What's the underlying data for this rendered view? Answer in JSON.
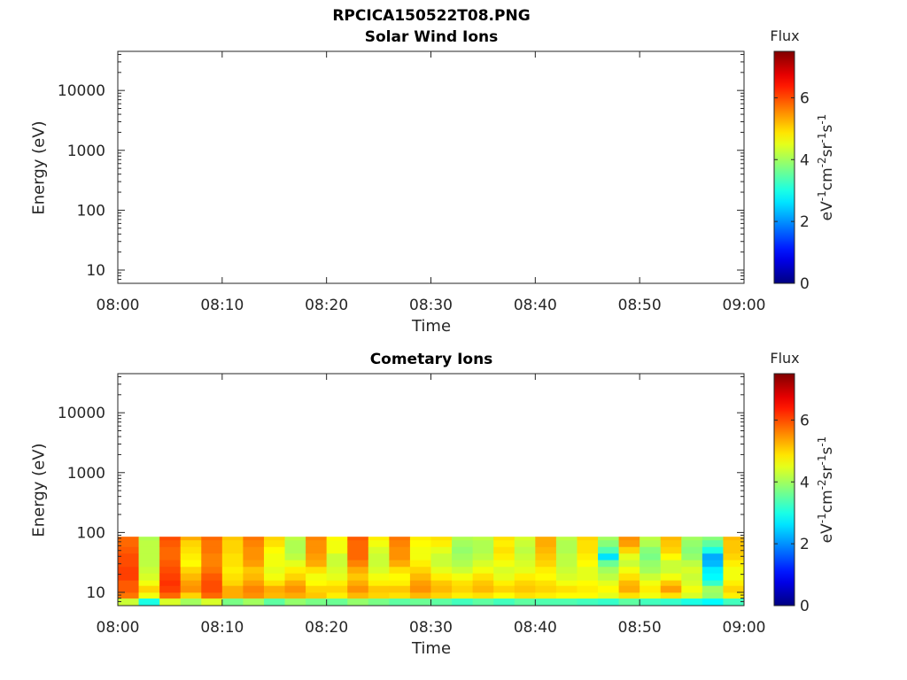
{
  "figure": {
    "title_line1": "RPCICA150522T08.PNG"
  },
  "colorbar": {
    "label": "Flux",
    "units": "eV-1cm-2sr-1s-1",
    "ticks": [
      "0",
      "2",
      "4",
      "6"
    ],
    "range": [
      0,
      7.5
    ],
    "colormap": "jet"
  },
  "chart_data": [
    {
      "type": "heatmap",
      "title": "Solar Wind Ions",
      "xlabel": "Time",
      "ylabel": "Energy (eV)",
      "x_ticks": [
        "08:00",
        "08:10",
        "08:20",
        "08:30",
        "08:40",
        "08:50",
        "09:00"
      ],
      "x_range": [
        "08:00",
        "09:00"
      ],
      "y_scale": "log",
      "y_ticks": [
        "10",
        "100",
        "1000",
        "10000"
      ],
      "y_range": [
        6,
        45000
      ],
      "z_range": [
        0,
        7.5
      ],
      "columns": [],
      "energy_bins": []
    },
    {
      "type": "heatmap",
      "title": "Cometary Ions",
      "xlabel": "Time",
      "ylabel": "Energy (eV)",
      "x_ticks": [
        "08:00",
        "08:10",
        "08:20",
        "08:30",
        "08:40",
        "08:50",
        "09:00"
      ],
      "x_range": [
        "08:00",
        "09:00"
      ],
      "y_scale": "log",
      "y_ticks": [
        "10",
        "100",
        "1000",
        "10000"
      ],
      "y_range": [
        6,
        45000
      ],
      "z_range": [
        0,
        7.5
      ],
      "energy_bins": [
        6,
        8,
        10,
        13,
        16,
        21,
        27,
        35,
        45,
        58,
        75,
        85
      ],
      "columns": [
        {
          "start": "08:00",
          "end": "08:02",
          "flux": [
            4.3,
            5.7,
            5.9,
            5.9,
            6.1,
            6.1,
            6.0,
            6.0,
            5.9,
            5.8,
            5.8
          ]
        },
        {
          "start": "08:02",
          "end": "08:04",
          "flux": [
            3.0,
            4.6,
            5.0,
            4.6,
            4.4,
            4.3,
            4.2,
            4.2,
            4.2,
            4.2,
            4.1
          ]
        },
        {
          "start": "08:04",
          "end": "08:06",
          "flux": [
            4.4,
            5.8,
            6.1,
            6.2,
            6.1,
            6.0,
            5.9,
            5.8,
            5.8,
            5.9,
            6.0
          ]
        },
        {
          "start": "08:06",
          "end": "08:08",
          "flux": [
            4.0,
            5.0,
            5.5,
            5.4,
            5.2,
            5.0,
            4.7,
            4.8,
            4.9,
            5.0,
            5.3
          ]
        },
        {
          "start": "08:08",
          "end": "08:10",
          "flux": [
            4.4,
            5.8,
            6.0,
            6.0,
            5.9,
            5.7,
            5.6,
            5.6,
            5.7,
            5.7,
            5.8
          ]
        },
        {
          "start": "08:10",
          "end": "08:12",
          "flux": [
            3.7,
            5.3,
            5.3,
            5.0,
            4.9,
            4.8,
            4.9,
            4.9,
            5.0,
            5.0,
            5.1
          ]
        },
        {
          "start": "08:12",
          "end": "08:14",
          "flux": [
            4.0,
            5.5,
            5.6,
            5.4,
            5.2,
            5.1,
            5.4,
            5.5,
            5.5,
            5.6,
            5.7
          ]
        },
        {
          "start": "08:14",
          "end": "08:16",
          "flux": [
            3.5,
            5.2,
            5.3,
            4.9,
            4.6,
            4.5,
            4.6,
            4.6,
            4.7,
            4.9,
            5.0
          ]
        },
        {
          "start": "08:16",
          "end": "08:18",
          "flux": [
            3.9,
            5.3,
            5.5,
            5.3,
            5.0,
            4.8,
            4.5,
            4.2,
            4.1,
            4.1,
            4.2
          ]
        },
        {
          "start": "08:18",
          "end": "08:20",
          "flux": [
            3.7,
            5.1,
            5.0,
            4.7,
            4.6,
            4.9,
            5.3,
            5.4,
            5.5,
            5.5,
            5.6
          ]
        },
        {
          "start": "08:20",
          "end": "08:22",
          "flux": [
            3.6,
            4.8,
            5.0,
            4.8,
            4.5,
            4.4,
            4.3,
            4.3,
            4.6,
            4.6,
            4.7
          ]
        },
        {
          "start": "08:22",
          "end": "08:24",
          "flux": [
            3.9,
            5.2,
            5.5,
            5.3,
            5.1,
            5.3,
            5.6,
            5.8,
            5.8,
            5.8,
            5.9
          ]
        },
        {
          "start": "08:24",
          "end": "08:26",
          "flux": [
            3.7,
            5.0,
            5.1,
            4.8,
            4.6,
            4.4,
            4.3,
            4.3,
            4.4,
            4.6,
            4.8
          ]
        },
        {
          "start": "08:26",
          "end": "08:28",
          "flux": [
            3.5,
            4.9,
            5.1,
            4.8,
            4.7,
            4.9,
            5.3,
            5.5,
            5.5,
            5.6,
            5.7
          ]
        },
        {
          "start": "08:28",
          "end": "08:30",
          "flux": [
            3.6,
            5.2,
            5.5,
            5.4,
            5.2,
            5.0,
            4.8,
            4.6,
            4.6,
            4.7,
            4.8
          ]
        },
        {
          "start": "08:30",
          "end": "08:32",
          "flux": [
            3.5,
            5.0,
            5.2,
            5.1,
            4.8,
            4.5,
            4.3,
            4.3,
            4.5,
            4.8,
            4.9
          ]
        },
        {
          "start": "08:32",
          "end": "08:34",
          "flux": [
            3.3,
            4.8,
            5.0,
            4.9,
            4.6,
            4.3,
            4.1,
            4.0,
            3.9,
            4.0,
            4.1
          ]
        },
        {
          "start": "08:34",
          "end": "08:36",
          "flux": [
            3.5,
            4.9,
            5.2,
            5.1,
            4.9,
            4.6,
            4.4,
            4.2,
            4.1,
            4.1,
            4.2
          ]
        },
        {
          "start": "08:36",
          "end": "08:38",
          "flux": [
            3.3,
            4.7,
            5.0,
            4.8,
            4.5,
            4.4,
            4.6,
            4.8,
            4.9,
            4.8,
            4.9
          ]
        },
        {
          "start": "08:38",
          "end": "08:40",
          "flux": [
            3.5,
            4.9,
            5.1,
            5.0,
            4.8,
            4.5,
            4.4,
            4.3,
            4.2,
            4.3,
            4.4
          ]
        },
        {
          "start": "08:40",
          "end": "08:42",
          "flux": [
            3.4,
            4.8,
            5.0,
            4.9,
            4.7,
            4.8,
            5.0,
            5.1,
            5.2,
            5.3,
            5.3
          ]
        },
        {
          "start": "08:42",
          "end": "08:44",
          "flux": [
            3.4,
            4.7,
            4.9,
            4.6,
            4.4,
            4.3,
            4.2,
            4.2,
            4.1,
            4.1,
            4.2
          ]
        },
        {
          "start": "08:44",
          "end": "08:46",
          "flux": [
            3.3,
            4.7,
            4.8,
            4.7,
            4.5,
            4.5,
            4.7,
            4.8,
            4.9,
            4.9,
            5.0
          ]
        },
        {
          "start": "08:46",
          "end": "08:48",
          "flux": [
            3.2,
            4.5,
            4.7,
            4.5,
            4.2,
            4.0,
            3.6,
            2.6,
            3.4,
            3.8,
            4.0
          ]
        },
        {
          "start": "08:48",
          "end": "08:50",
          "flux": [
            3.5,
            4.9,
            5.3,
            5.2,
            4.9,
            4.6,
            4.3,
            4.5,
            5.0,
            5.4,
            5.5
          ]
        },
        {
          "start": "08:50",
          "end": "08:52",
          "flux": [
            3.3,
            4.6,
            4.8,
            4.6,
            4.3,
            4.0,
            3.9,
            3.7,
            3.8,
            4.1,
            4.2
          ]
        },
        {
          "start": "08:52",
          "end": "08:54",
          "flux": [
            3.2,
            4.9,
            5.4,
            5.1,
            4.6,
            4.3,
            4.3,
            4.7,
            5.0,
            5.1,
            5.2
          ]
        },
        {
          "start": "08:54",
          "end": "08:56",
          "flux": [
            3.0,
            4.4,
            4.6,
            4.4,
            4.3,
            4.4,
            4.2,
            3.9,
            3.8,
            3.9,
            4.0
          ]
        },
        {
          "start": "08:56",
          "end": "08:58",
          "flux": [
            2.8,
            3.9,
            4.0,
            3.2,
            2.8,
            2.7,
            2.3,
            2.2,
            3.0,
            3.5,
            3.8
          ]
        },
        {
          "start": "08:58",
          "end": "09:00",
          "flux": [
            3.3,
            4.8,
            5.0,
            4.8,
            4.6,
            4.6,
            4.8,
            5.0,
            5.1,
            5.1,
            5.2
          ]
        }
      ]
    }
  ]
}
